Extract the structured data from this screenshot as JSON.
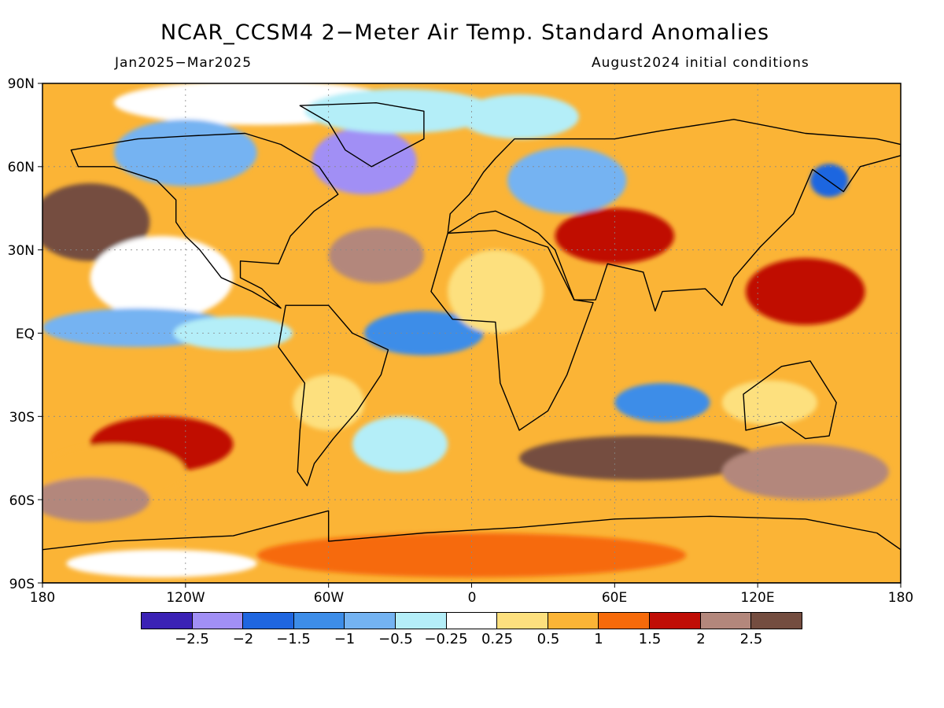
{
  "header": {
    "title": "NCAR_CCSM4 2−Meter Air Temp. Standard Anomalies",
    "period": "Jan2025−Mar2025",
    "init": "August2024 initial conditions"
  },
  "axes": {
    "lat_labels": [
      "90N",
      "60N",
      "30N",
      "EQ",
      "30S",
      "60S",
      "90S"
    ],
    "lon_labels": [
      "180",
      "120W",
      "60W",
      "0",
      "60E",
      "120E",
      "180"
    ]
  },
  "colorbar": {
    "colors": [
      "#3b22b5",
      "#a18ff5",
      "#1f66e0",
      "#3d8de8",
      "#74b3f2",
      "#b4eef8",
      "#ffffff",
      "#fde07e",
      "#fbb436",
      "#f66a0a",
      "#c00d06",
      "#b3877c",
      "#744d40"
    ],
    "labels": [
      "−2.5",
      "−2",
      "−1.5",
      "−1",
      "−0.5",
      "−0.25",
      "0.25",
      "0.5",
      "1",
      "1.5",
      "2",
      "2.5"
    ]
  },
  "map": {
    "lon_range": [
      -180,
      180
    ],
    "lat_range": [
      -90,
      90
    ],
    "background_anomaly": 0.8,
    "blobs": [
      {
        "lon": -90,
        "lat": 83,
        "rx": 60,
        "ry": 8,
        "v": 0.0
      },
      {
        "lon": -120,
        "lat": 65,
        "rx": 30,
        "ry": 12,
        "v": -0.8
      },
      {
        "lon": -45,
        "lat": 62,
        "rx": 22,
        "ry": 12,
        "v": -2.4
      },
      {
        "lon": -30,
        "lat": 80,
        "rx": 40,
        "ry": 8,
        "v": -0.5
      },
      {
        "lon": 20,
        "lat": 78,
        "rx": 25,
        "ry": 8,
        "v": -0.3
      },
      {
        "lon": 40,
        "lat": 55,
        "rx": 25,
        "ry": 12,
        "v": -0.6
      },
      {
        "lon": 150,
        "lat": 55,
        "rx": 8,
        "ry": 6,
        "v": -2.0
      },
      {
        "lon": -160,
        "lat": 40,
        "rx": 25,
        "ry": 14,
        "v": 2.5
      },
      {
        "lon": -130,
        "lat": 20,
        "rx": 30,
        "ry": 15,
        "v": -0.2
      },
      {
        "lon": -140,
        "lat": 2,
        "rx": 40,
        "ry": 7,
        "v": -0.9
      },
      {
        "lon": -100,
        "lat": 0,
        "rx": 25,
        "ry": 6,
        "v": -0.5
      },
      {
        "lon": -20,
        "lat": 0,
        "rx": 25,
        "ry": 8,
        "v": -1.2
      },
      {
        "lon": -40,
        "lat": 28,
        "rx": 20,
        "ry": 10,
        "v": 2.3
      },
      {
        "lon": 80,
        "lat": -25,
        "rx": 20,
        "ry": 7,
        "v": -1.1
      },
      {
        "lon": 60,
        "lat": 35,
        "rx": 25,
        "ry": 10,
        "v": 1.7
      },
      {
        "lon": 140,
        "lat": 15,
        "rx": 25,
        "ry": 12,
        "v": 1.8
      },
      {
        "lon": 10,
        "lat": 15,
        "rx": 20,
        "ry": 15,
        "v": 0.4
      },
      {
        "lon": 70,
        "lat": -45,
        "rx": 50,
        "ry": 8,
        "v": 2.6
      },
      {
        "lon": -130,
        "lat": -40,
        "rx": 30,
        "ry": 10,
        "v": 1.6
      },
      {
        "lon": -150,
        "lat": -50,
        "rx": 30,
        "ry": 10,
        "v": 0.6
      },
      {
        "lon": -160,
        "lat": -60,
        "rx": 25,
        "ry": 8,
        "v": 2.3
      },
      {
        "lon": 140,
        "lat": -50,
        "rx": 35,
        "ry": 10,
        "v": 2.4
      },
      {
        "lon": 0,
        "lat": -80,
        "rx": 90,
        "ry": 8,
        "v": 1.0
      },
      {
        "lon": -130,
        "lat": -83,
        "rx": 40,
        "ry": 5,
        "v": 0.0
      },
      {
        "lon": -60,
        "lat": -25,
        "rx": 15,
        "ry": 10,
        "v": 0.3
      },
      {
        "lon": -30,
        "lat": -40,
        "rx": 20,
        "ry": 10,
        "v": -0.4
      },
      {
        "lon": 125,
        "lat": -25,
        "rx": 20,
        "ry": 8,
        "v": 0.3
      }
    ],
    "continents": [
      [
        [
          -168,
          66
        ],
        [
          -140,
          70
        ],
        [
          -120,
          71
        ],
        [
          -95,
          72
        ],
        [
          -80,
          68
        ],
        [
          -64,
          60
        ],
        [
          -56,
          50
        ],
        [
          -66,
          44
        ],
        [
          -76,
          35
        ],
        [
          -81,
          25
        ],
        [
          -97,
          26
        ],
        [
          -97,
          20
        ],
        [
          -88,
          16
        ],
        [
          -80,
          9
        ],
        [
          -92,
          15
        ],
        [
          -105,
          20
        ],
        [
          -114,
          30
        ],
        [
          -120,
          35
        ],
        [
          -124,
          40
        ],
        [
          -124,
          48
        ],
        [
          -132,
          55
        ],
        [
          -150,
          60
        ],
        [
          -165,
          60
        ],
        [
          -168,
          66
        ]
      ],
      [
        [
          -72,
          82
        ],
        [
          -40,
          83
        ],
        [
          -20,
          80
        ],
        [
          -20,
          70
        ],
        [
          -42,
          60
        ],
        [
          -53,
          66
        ],
        [
          -60,
          76
        ],
        [
          -72,
          82
        ]
      ],
      [
        [
          -78,
          10
        ],
        [
          -60,
          10
        ],
        [
          -50,
          0
        ],
        [
          -35,
          -6
        ],
        [
          -38,
          -15
        ],
        [
          -48,
          -28
        ],
        [
          -58,
          -38
        ],
        [
          -66,
          -47
        ],
        [
          -69,
          -55
        ],
        [
          -73,
          -50
        ],
        [
          -72,
          -35
        ],
        [
          -70,
          -18
        ],
        [
          -81,
          -5
        ],
        [
          -78,
          10
        ]
      ],
      [
        [
          -10,
          36
        ],
        [
          10,
          37
        ],
        [
          32,
          31
        ],
        [
          43,
          12
        ],
        [
          51,
          11
        ],
        [
          40,
          -15
        ],
        [
          32,
          -28
        ],
        [
          20,
          -35
        ],
        [
          12,
          -18
        ],
        [
          10,
          4
        ],
        [
          -8,
          5
        ],
        [
          -17,
          15
        ],
        [
          -10,
          36
        ]
      ],
      [
        [
          -10,
          36
        ],
        [
          -9,
          43
        ],
        [
          -1,
          50
        ],
        [
          5,
          58
        ],
        [
          10,
          63
        ],
        [
          18,
          70
        ],
        [
          30,
          70
        ],
        [
          60,
          70
        ],
        [
          80,
          73
        ],
        [
          110,
          77
        ],
        [
          140,
          72
        ],
        [
          170,
          70
        ],
        [
          180,
          68
        ],
        [
          180,
          64
        ],
        [
          163,
          60
        ],
        [
          156,
          51
        ],
        [
          143,
          59
        ],
        [
          135,
          43
        ],
        [
          121,
          31
        ],
        [
          110,
          20
        ],
        [
          105,
          10
        ],
        [
          98,
          16
        ],
        [
          80,
          15
        ],
        [
          77,
          8
        ],
        [
          72,
          22
        ],
        [
          57,
          25
        ],
        [
          52,
          12
        ],
        [
          43,
          12
        ],
        [
          35,
          30
        ],
        [
          28,
          36
        ],
        [
          20,
          40
        ],
        [
          10,
          44
        ],
        [
          3,
          43
        ],
        [
          -10,
          36
        ]
      ],
      [
        [
          114,
          -22
        ],
        [
          130,
          -12
        ],
        [
          142,
          -10
        ],
        [
          153,
          -25
        ],
        [
          150,
          -37
        ],
        [
          140,
          -38
        ],
        [
          130,
          -32
        ],
        [
          115,
          -35
        ],
        [
          114,
          -22
        ]
      ],
      [
        [
          -180,
          -78
        ],
        [
          -150,
          -75
        ],
        [
          -100,
          -73
        ],
        [
          -60,
          -64
        ],
        [
          -60,
          -75
        ],
        [
          -20,
          -72
        ],
        [
          20,
          -70
        ],
        [
          60,
          -67
        ],
        [
          100,
          -66
        ],
        [
          140,
          -67
        ],
        [
          170,
          -72
        ],
        [
          180,
          -78
        ],
        [
          180,
          -90
        ],
        [
          -180,
          -90
        ],
        [
          -180,
          -78
        ]
      ]
    ]
  }
}
